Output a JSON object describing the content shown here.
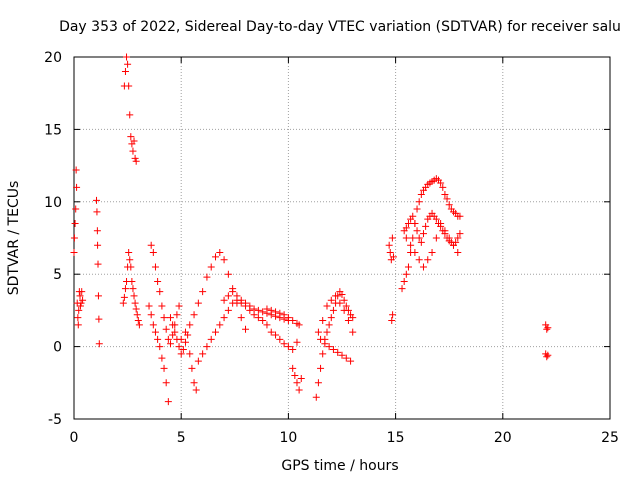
{
  "chart_data": {
    "type": "scatter",
    "title": "Day 353 of 2022, Sidereal Day-to-day VTEC variation (SDTVAR) for receiver salu",
    "xlabel": "GPS time / hours",
    "ylabel": "SDTVAR / TECUs",
    "xlim": [
      0,
      25
    ],
    "ylim": [
      -5,
      20
    ],
    "xticks": [
      0,
      5,
      10,
      15,
      20,
      25
    ],
    "yticks": [
      -5,
      0,
      5,
      10,
      15,
      20
    ],
    "grid": true,
    "marker": "+",
    "series": [
      {
        "name": "SDTVAR",
        "color": "#ff0000",
        "x": [
          0.0,
          0.02,
          0.05,
          0.08,
          0.1,
          0.12,
          0.15,
          0.18,
          0.2,
          0.22,
          0.25,
          0.28,
          0.3,
          0.33,
          0.36,
          0.4,
          1.05,
          1.07,
          1.09,
          1.1,
          1.12,
          1.14,
          1.16,
          1.18,
          2.3,
          2.35,
          2.4,
          2.45,
          2.5,
          2.55,
          2.6,
          2.65,
          2.7,
          2.75,
          2.8,
          2.85,
          2.9,
          2.95,
          3.0,
          3.05,
          2.35,
          2.4,
          2.45,
          2.5,
          2.55,
          2.6,
          2.65,
          2.7,
          2.75,
          2.8,
          2.85,
          2.9,
          3.5,
          3.6,
          3.7,
          3.8,
          3.9,
          4.0,
          4.1,
          4.2,
          4.3,
          4.4,
          3.6,
          3.7,
          3.8,
          3.9,
          4.0,
          4.1,
          4.2,
          4.3,
          4.4,
          4.5,
          4.6,
          4.7,
          4.8,
          4.9,
          4.5,
          4.6,
          4.7,
          4.8,
          4.9,
          5.0,
          5.1,
          5.2,
          5.3,
          5.4,
          5.5,
          5.6,
          5.7,
          5.8,
          5.0,
          5.2,
          5.4,
          5.6,
          5.8,
          6.0,
          6.2,
          6.4,
          6.6,
          6.8,
          7.0,
          7.2,
          7.4,
          7.6,
          7.8,
          8.0,
          6.0,
          6.2,
          6.4,
          6.6,
          6.8,
          7.0,
          7.2,
          7.4,
          7.6,
          7.8,
          8.0,
          8.2,
          8.4,
          8.6,
          8.8,
          9.0,
          9.2,
          9.4,
          9.6,
          9.8,
          10.0,
          10.2,
          10.4,
          7.0,
          7.2,
          7.4,
          7.6,
          7.8,
          8.0,
          8.2,
          8.4,
          8.6,
          8.8,
          9.0,
          9.2,
          9.4,
          9.6,
          9.8,
          10.0,
          9.0,
          9.2,
          9.4,
          9.6,
          9.8,
          10.0,
          10.2,
          10.4,
          10.5,
          10.2,
          10.3,
          10.4,
          10.5,
          10.6,
          11.3,
          11.4,
          11.5,
          11.6,
          11.7,
          11.8,
          11.9,
          12.0,
          12.1,
          12.2,
          12.3,
          12.4,
          12.5,
          12.6,
          12.7,
          12.8,
          12.9,
          13.0,
          11.4,
          11.6,
          11.8,
          12.0,
          12.2,
          12.4,
          12.6,
          12.8,
          13.0,
          11.5,
          11.7,
          11.9,
          12.1,
          12.3,
          12.5,
          12.7,
          12.9,
          14.7,
          14.75,
          14.8,
          14.85,
          14.9,
          14.82,
          14.86,
          15.3,
          15.4,
          15.5,
          15.6,
          15.7,
          15.8,
          15.9,
          16.0,
          16.1,
          16.2,
          16.3,
          16.4,
          16.5,
          16.6,
          16.7,
          16.8,
          16.9,
          17.0,
          17.1,
          17.2,
          17.3,
          17.4,
          17.5,
          17.6,
          17.7,
          17.8,
          17.9,
          18.0,
          15.4,
          15.5,
          15.6,
          15.7,
          15.8,
          15.9,
          16.0,
          16.1,
          16.2,
          16.3,
          16.4,
          16.5,
          16.6,
          16.7,
          16.8,
          16.9,
          17.0,
          17.1,
          17.2,
          17.3,
          17.4,
          17.5,
          17.6,
          17.7,
          17.8,
          17.9,
          18.0,
          15.5,
          15.7,
          15.9,
          16.1,
          16.3,
          16.5,
          16.7,
          16.9,
          17.1,
          17.3,
          17.5,
          17.7,
          17.9,
          22.0,
          22.05,
          22.1,
          22.0,
          22.05,
          22.1
        ],
        "y": [
          6.5,
          7.5,
          8.5,
          9.5,
          12.2,
          11.0,
          3.0,
          2.0,
          1.5,
          2.5,
          3.8,
          3.5,
          2.8,
          3.0,
          3.8,
          3.2,
          10.1,
          9.3,
          8.0,
          7.0,
          5.7,
          3.5,
          1.9,
          0.2,
          3.0,
          3.4,
          4.0,
          4.5,
          5.5,
          6.5,
          6.0,
          5.5,
          4.5,
          4.0,
          3.5,
          3.0,
          2.6,
          2.2,
          1.8,
          1.5,
          18.0,
          19.0,
          20.0,
          19.5,
          18.0,
          16.0,
          14.5,
          14.0,
          13.5,
          14.2,
          13.0,
          12.8,
          2.8,
          2.2,
          1.5,
          1.0,
          0.5,
          0.0,
          -0.8,
          -1.5,
          -2.5,
          -3.8,
          7.0,
          6.5,
          5.5,
          4.5,
          3.8,
          2.8,
          2.0,
          1.2,
          0.5,
          0.2,
          0.8,
          1.5,
          2.2,
          2.8,
          2.0,
          1.5,
          1.0,
          0.5,
          0.0,
          -0.5,
          -0.2,
          0.3,
          0.8,
          -0.5,
          -1.5,
          -2.5,
          -3.0,
          -1.0,
          0.5,
          1.0,
          1.5,
          2.2,
          3.0,
          3.8,
          4.8,
          5.5,
          6.2,
          6.5,
          6.0,
          5.0,
          4.0,
          3.0,
          2.0,
          1.2,
          -0.5,
          0.0,
          0.5,
          1.0,
          1.5,
          2.0,
          2.5,
          3.0,
          3.2,
          3.0,
          2.8,
          2.5,
          2.2,
          2.0,
          1.8,
          1.5,
          1.0,
          0.8,
          0.5,
          0.2,
          0.0,
          -0.2,
          0.3,
          3.2,
          3.5,
          3.8,
          3.5,
          3.2,
          3.0,
          2.8,
          2.6,
          2.5,
          2.4,
          2.3,
          2.2,
          2.1,
          2.0,
          1.9,
          1.8,
          2.6,
          2.5,
          2.4,
          2.3,
          2.2,
          2.0,
          1.8,
          1.6,
          1.5,
          -1.5,
          -2.0,
          -2.5,
          -3.0,
          -2.2,
          -3.5,
          -2.5,
          -1.5,
          -0.5,
          0.5,
          1.0,
          1.5,
          2.0,
          2.5,
          3.0,
          3.5,
          3.8,
          3.6,
          3.2,
          2.8,
          2.5,
          2.2,
          2.0,
          1.0,
          1.8,
          2.8,
          3.2,
          3.5,
          3.0,
          2.5,
          1.8,
          1.0,
          0.5,
          0.2,
          0.0,
          -0.2,
          -0.4,
          -0.6,
          -0.8,
          -1.0,
          7.0,
          6.5,
          6.0,
          7.5,
          6.2,
          1.8,
          2.2,
          4.0,
          4.5,
          5.0,
          5.5,
          6.5,
          7.5,
          8.5,
          9.5,
          10.0,
          10.5,
          10.8,
          11.0,
          11.2,
          11.3,
          11.4,
          11.5,
          11.6,
          11.5,
          11.3,
          11.0,
          10.5,
          10.2,
          9.8,
          9.5,
          9.3,
          9.2,
          9.0,
          9.0,
          8.0,
          8.2,
          8.5,
          8.8,
          9.0,
          8.5,
          8.0,
          7.5,
          7.2,
          7.8,
          8.3,
          8.8,
          9.0,
          9.2,
          9.0,
          8.8,
          8.5,
          8.3,
          8.0,
          7.8,
          7.5,
          7.3,
          7.2,
          7.0,
          7.2,
          7.5,
          7.8,
          7.5,
          7.0,
          6.5,
          6.0,
          5.5,
          6.0,
          6.5,
          7.5,
          8.5,
          8.0,
          7.5,
          7.0,
          6.5,
          1.5,
          1.2,
          1.3,
          -0.5,
          -0.7,
          -0.6
        ]
      }
    ]
  }
}
